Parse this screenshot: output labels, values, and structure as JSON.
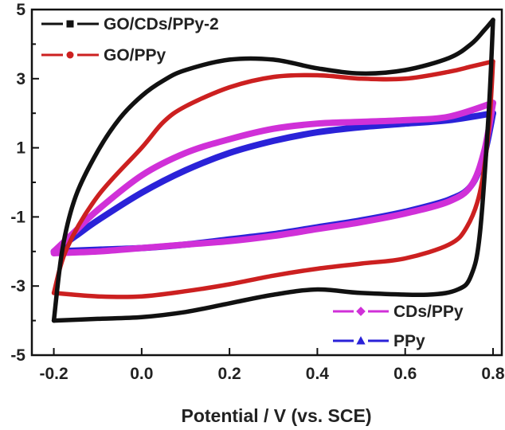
{
  "chart_data": {
    "type": "line",
    "title": "",
    "xlabel": "Potential / V (vs. SCE)",
    "ylabel": "",
    "xlim": [
      -0.25,
      0.82
    ],
    "ylim": [
      -5,
      5
    ],
    "x_ticks": [
      -0.2,
      0.0,
      0.2,
      0.4,
      0.6,
      0.8
    ],
    "x_tick_labels": [
      "-0.2",
      "0.0",
      "0.2",
      "0.4",
      "0.6",
      "0.8"
    ],
    "y_ticks": [
      -5,
      -3,
      -1,
      1,
      3,
      5
    ],
    "y_tick_labels": [
      "-5",
      "-3",
      "-1",
      "1",
      "3",
      "5"
    ],
    "grid": false,
    "series": [
      {
        "name": "GO/CDs/PPy-2",
        "color": "#111111",
        "marker": "square",
        "legend_position": "top-left",
        "anodic": [
          [
            -0.2,
            -4.0
          ],
          [
            -0.18,
            -1.9
          ],
          [
            -0.15,
            -0.4
          ],
          [
            -0.1,
            0.9
          ],
          [
            -0.05,
            1.85
          ],
          [
            0.0,
            2.5
          ],
          [
            0.05,
            2.95
          ],
          [
            0.1,
            3.25
          ],
          [
            0.2,
            3.55
          ],
          [
            0.3,
            3.55
          ],
          [
            0.4,
            3.3
          ],
          [
            0.5,
            3.15
          ],
          [
            0.6,
            3.25
          ],
          [
            0.7,
            3.6
          ],
          [
            0.75,
            4.0
          ],
          [
            0.78,
            4.4
          ],
          [
            0.8,
            4.7
          ]
        ],
        "cathodic": [
          [
            0.8,
            4.7
          ],
          [
            0.79,
            2.0
          ],
          [
            0.77,
            -1.5
          ],
          [
            0.75,
            -2.7
          ],
          [
            0.72,
            -3.1
          ],
          [
            0.65,
            -3.25
          ],
          [
            0.5,
            -3.2
          ],
          [
            0.4,
            -3.1
          ],
          [
            0.3,
            -3.25
          ],
          [
            0.2,
            -3.5
          ],
          [
            0.1,
            -3.75
          ],
          [
            0.0,
            -3.9
          ],
          [
            -0.1,
            -3.95
          ],
          [
            -0.2,
            -4.0
          ]
        ]
      },
      {
        "name": "GO/PPy",
        "color": "#cc2020",
        "marker": "circle",
        "legend_position": "top-left",
        "anodic": [
          [
            -0.2,
            -3.2
          ],
          [
            -0.17,
            -1.9
          ],
          [
            -0.1,
            -0.4
          ],
          [
            0.0,
            1.0
          ],
          [
            0.05,
            1.75
          ],
          [
            0.1,
            2.2
          ],
          [
            0.2,
            2.75
          ],
          [
            0.3,
            3.05
          ],
          [
            0.4,
            3.1
          ],
          [
            0.5,
            3.0
          ],
          [
            0.6,
            3.0
          ],
          [
            0.7,
            3.2
          ],
          [
            0.75,
            3.35
          ],
          [
            0.8,
            3.5
          ]
        ],
        "cathodic": [
          [
            0.8,
            3.5
          ],
          [
            0.79,
            1.5
          ],
          [
            0.77,
            -0.3
          ],
          [
            0.74,
            -1.3
          ],
          [
            0.7,
            -1.8
          ],
          [
            0.6,
            -2.2
          ],
          [
            0.5,
            -2.35
          ],
          [
            0.4,
            -2.5
          ],
          [
            0.3,
            -2.7
          ],
          [
            0.2,
            -2.95
          ],
          [
            0.1,
            -3.15
          ],
          [
            0.0,
            -3.3
          ],
          [
            -0.1,
            -3.3
          ],
          [
            -0.2,
            -3.2
          ]
        ]
      },
      {
        "name": "CDs/PPy",
        "color": "#d030d8",
        "marker": "diamond",
        "legend_position": "bottom-right",
        "anodic": [
          [
            -0.2,
            -2.0
          ],
          [
            -0.15,
            -1.4
          ],
          [
            -0.1,
            -0.8
          ],
          [
            0.0,
            0.2
          ],
          [
            0.1,
            0.85
          ],
          [
            0.2,
            1.25
          ],
          [
            0.3,
            1.55
          ],
          [
            0.4,
            1.7
          ],
          [
            0.5,
            1.75
          ],
          [
            0.6,
            1.8
          ],
          [
            0.7,
            1.9
          ],
          [
            0.8,
            2.3
          ]
        ],
        "cathodic": [
          [
            0.8,
            2.3
          ],
          [
            0.78,
            0.9
          ],
          [
            0.75,
            -0.1
          ],
          [
            0.7,
            -0.55
          ],
          [
            0.6,
            -0.9
          ],
          [
            0.5,
            -1.15
          ],
          [
            0.4,
            -1.35
          ],
          [
            0.3,
            -1.55
          ],
          [
            0.2,
            -1.7
          ],
          [
            0.1,
            -1.8
          ],
          [
            0.0,
            -1.9
          ],
          [
            -0.1,
            -2.0
          ],
          [
            -0.2,
            -2.05
          ]
        ]
      },
      {
        "name": "PPy",
        "color": "#2a22d8",
        "marker": "triangle",
        "legend_position": "bottom-right",
        "anodic": [
          [
            -0.2,
            -2.0
          ],
          [
            -0.15,
            -1.55
          ],
          [
            -0.1,
            -1.1
          ],
          [
            0.0,
            -0.3
          ],
          [
            0.1,
            0.35
          ],
          [
            0.2,
            0.85
          ],
          [
            0.3,
            1.2
          ],
          [
            0.4,
            1.45
          ],
          [
            0.5,
            1.6
          ],
          [
            0.6,
            1.7
          ],
          [
            0.7,
            1.8
          ],
          [
            0.8,
            2.0
          ]
        ],
        "cathodic": [
          [
            0.8,
            2.0
          ],
          [
            0.78,
            0.8
          ],
          [
            0.75,
            -0.1
          ],
          [
            0.7,
            -0.5
          ],
          [
            0.6,
            -0.85
          ],
          [
            0.5,
            -1.1
          ],
          [
            0.4,
            -1.3
          ],
          [
            0.3,
            -1.5
          ],
          [
            0.2,
            -1.65
          ],
          [
            0.1,
            -1.8
          ],
          [
            0.0,
            -1.9
          ],
          [
            -0.1,
            -1.95
          ],
          [
            -0.2,
            -2.0
          ]
        ]
      }
    ]
  }
}
